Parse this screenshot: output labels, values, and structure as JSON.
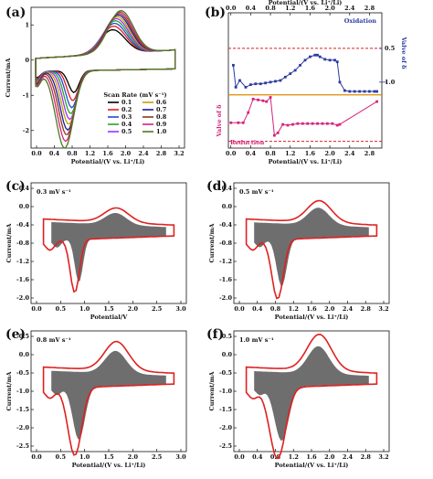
{
  "chart_data": [
    {
      "panel": "(a)",
      "type": "line",
      "xlabel": "Potential/(V vs. Li⁺/Li)",
      "ylabel": "Current/mA",
      "xlim": [
        -0.1,
        3.2
      ],
      "ylim": [
        -2.5,
        1.5
      ],
      "xticks": [
        "0.0",
        "0.4",
        "0.8",
        "1.2",
        "1.6",
        "2.0",
        "2.4",
        "2.8",
        "3.2"
      ],
      "yticks": [
        "-2",
        "-1",
        "0",
        "1"
      ],
      "legend_title": "Scan Rate (mV s⁻¹)",
      "legend_position": "bottom-right",
      "series": [
        {
          "name": "0.1",
          "color": "#000000",
          "anodic_peak": 0.68,
          "cathodic_peak": -0.62
        },
        {
          "name": "0.2",
          "color": "#e41a1c",
          "anodic_peak": 0.78,
          "cathodic_peak": -0.85
        },
        {
          "name": "0.3",
          "color": "#1f4bd8",
          "anodic_peak": 0.86,
          "cathodic_peak": -1.05
        },
        {
          "name": "0.4",
          "color": "#2ca02c",
          "anodic_peak": 0.93,
          "cathodic_peak": -1.22
        },
        {
          "name": "0.5",
          "color": "#9b30ff",
          "anodic_peak": 0.99,
          "cathodic_peak": -1.38
        },
        {
          "name": "0.6",
          "color": "#c8a000",
          "anodic_peak": 1.04,
          "cathodic_peak": -1.52
        },
        {
          "name": "0.7",
          "color": "#1a1aa0",
          "anodic_peak": 1.09,
          "cathodic_peak": -1.68
        },
        {
          "name": "0.8",
          "color": "#8b3a1a",
          "anodic_peak": 1.13,
          "cathodic_peak": -1.82
        },
        {
          "name": "0.9",
          "color": "#d4237a",
          "anodic_peak": 1.17,
          "cathodic_peak": -2.0
        },
        {
          "name": "1.0",
          "color": "#4a7a20",
          "anodic_peak": 1.21,
          "cathodic_peak": -2.2
        }
      ]
    },
    {
      "panel": "(b)",
      "type": "line",
      "xlabel": "Potential/(V vs. Li⁺/Li)",
      "xlim": [
        -0.05,
        3.05
      ],
      "xticks": [
        "0.0",
        "0.4",
        "0.8",
        "1.2",
        "1.6",
        "2.0",
        "2.4",
        "2.8"
      ],
      "left_label": "Valve of δ",
      "right_label": "Valve of δ",
      "right_ticks": [
        "0.5",
        "1.0"
      ],
      "annotations": [
        "Oxidation",
        "Reduction"
      ],
      "series": [
        {
          "name": "Oxidation",
          "color": "#2b3aa0",
          "x": [
            0.05,
            0.1,
            0.18,
            0.3,
            0.4,
            0.5,
            0.6,
            0.7,
            0.8,
            0.9,
            1.0,
            1.1,
            1.2,
            1.3,
            1.4,
            1.5,
            1.6,
            1.7,
            1.75,
            1.8,
            1.9,
            2.0,
            2.1,
            2.15,
            2.2,
            2.3,
            2.4,
            2.5,
            2.6,
            2.7,
            2.8,
            2.9,
            2.95
          ],
          "y": [
            0.62,
            0.88,
            0.8,
            0.88,
            0.85,
            0.84,
            0.84,
            0.83,
            0.82,
            0.81,
            0.8,
            0.76,
            0.72,
            0.68,
            0.62,
            0.56,
            0.52,
            0.5,
            0.5,
            0.52,
            0.55,
            0.56,
            0.56,
            0.58,
            0.82,
            0.92,
            0.93,
            0.93,
            0.93,
            0.93,
            0.93,
            0.93,
            0.93
          ]
        },
        {
          "name": "Reduction",
          "color": "#d4237a",
          "x": [
            0.0,
            0.15,
            0.25,
            0.35,
            0.45,
            0.55,
            0.65,
            0.72,
            0.8,
            0.88,
            0.95,
            1.05,
            1.15,
            1.25,
            1.35,
            1.45,
            1.55,
            1.65,
            1.75,
            1.85,
            1.95,
            2.05,
            2.15,
            2.2,
            2.95
          ],
          "y": [
            1.3,
            1.3,
            1.3,
            1.18,
            1.02,
            1.03,
            1.04,
            1.05,
            1.0,
            1.45,
            1.42,
            1.32,
            1.33,
            1.32,
            1.31,
            1.31,
            1.31,
            1.31,
            1.31,
            1.31,
            1.31,
            1.31,
            1.33,
            1.32,
            1.05
          ]
        }
      ]
    },
    {
      "panel": "(c)",
      "type": "area",
      "annotation": "0.3 mV s⁻¹",
      "xlabel": "Potential/V",
      "ylabel": "Current/mA",
      "xticks": [
        "0.0",
        "0.5",
        "1.0",
        "1.5",
        "2.0",
        "2.5",
        "3.0"
      ],
      "yticks": [
        "0.4",
        "0.0",
        "-0.4",
        "-0.8",
        "-1.2",
        "-1.6",
        "-2.0"
      ],
      "cathodic_peak": -1.4,
      "anodic_peak": 0.7
    },
    {
      "panel": "(d)",
      "type": "area",
      "annotation": "0.5 mV s⁻¹",
      "xlabel": "Potential/(V vs. Li⁺/Li)",
      "ylabel": "Current/mA",
      "xticks": [
        "0.0",
        "0.4",
        "0.8",
        "1.2",
        "1.6",
        "2.0",
        "2.4",
        "2.8",
        "3.2"
      ],
      "yticks": [
        "0.4",
        "0.0",
        "-0.4",
        "-0.8",
        "-1.2",
        "-1.6",
        "-2.0"
      ],
      "cathodic_peak": -1.68,
      "anodic_peak": 0.72
    },
    {
      "panel": "(e)",
      "type": "area",
      "annotation": "0.8 mV s⁻¹",
      "xlabel": "Potential/(V vs. Li⁺/Li)",
      "ylabel": "Current/mA",
      "xticks": [
        "0.0",
        "0.5",
        "1.0",
        "1.5",
        "2.0",
        "2.5",
        "3.0"
      ],
      "yticks": [
        "0.5",
        "0.0",
        "-0.5",
        "-1.0",
        "-1.5",
        "-2.0",
        "-2.5"
      ],
      "cathodic_peak": -2.05,
      "anodic_peak": 0.85
    },
    {
      "panel": "(f)",
      "type": "area",
      "annotation": "1.0 mV s⁻¹",
      "xlabel": "Potential/(V vs. Li⁺/Li)",
      "ylabel": "Current/mA",
      "xticks": [
        "0.0",
        "0.4",
        "0.8",
        "1.2",
        "1.6",
        "2.0",
        "2.4",
        "2.8",
        "3.2"
      ],
      "yticks": [
        "0.5",
        "0.0",
        "-0.5",
        "-1.0",
        "-1.5",
        "-2.0",
        "-2.5"
      ],
      "cathodic_peak": -2.2,
      "anodic_peak": 1.0
    }
  ]
}
